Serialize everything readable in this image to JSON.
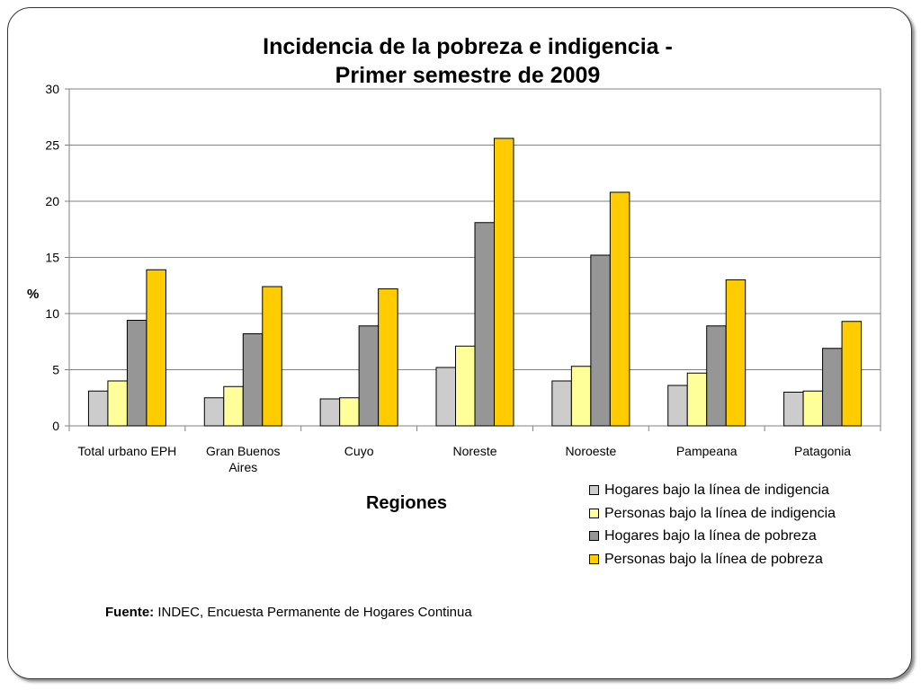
{
  "chart_data": {
    "type": "bar",
    "title_line1": "Incidencia de la pobreza e indigencia -",
    "title_line2": "Primer semestre de 2009",
    "xlabel": "Regiones",
    "ylabel": "%",
    "ylim": [
      0,
      30
    ],
    "yticks": [
      0,
      5,
      10,
      15,
      20,
      25,
      30
    ],
    "grid": true,
    "legend_position": "bottom-right",
    "categories": [
      [
        "Total urbano EPH"
      ],
      [
        "Gran Buenos",
        "Aires"
      ],
      [
        "Cuyo"
      ],
      [
        "Noreste"
      ],
      [
        "Noroeste"
      ],
      [
        "Pampeana"
      ],
      [
        "Patagonia"
      ]
    ],
    "series": [
      {
        "name": "Hogares bajo la línea de indigencia",
        "color": "#cccccc",
        "values": [
          3.1,
          2.5,
          2.4,
          5.2,
          4.0,
          3.6,
          3.0
        ]
      },
      {
        "name": "Personas bajo la línea de indigencia",
        "color": "#ffff99",
        "values": [
          4.0,
          3.5,
          2.5,
          7.1,
          5.3,
          4.7,
          3.1
        ]
      },
      {
        "name": "Hogares bajo la línea de pobreza",
        "color": "#969696",
        "values": [
          9.4,
          8.2,
          8.9,
          18.1,
          15.2,
          8.9,
          6.9
        ]
      },
      {
        "name": "Personas bajo la línea de pobreza",
        "color": "#ffcc00",
        "values": [
          13.9,
          12.4,
          12.2,
          25.6,
          20.8,
          13.0,
          9.3
        ]
      }
    ]
  },
  "source": {
    "label": "Fuente:",
    "text": " INDEC, Encuesta Permanente de Hogares Continua"
  }
}
